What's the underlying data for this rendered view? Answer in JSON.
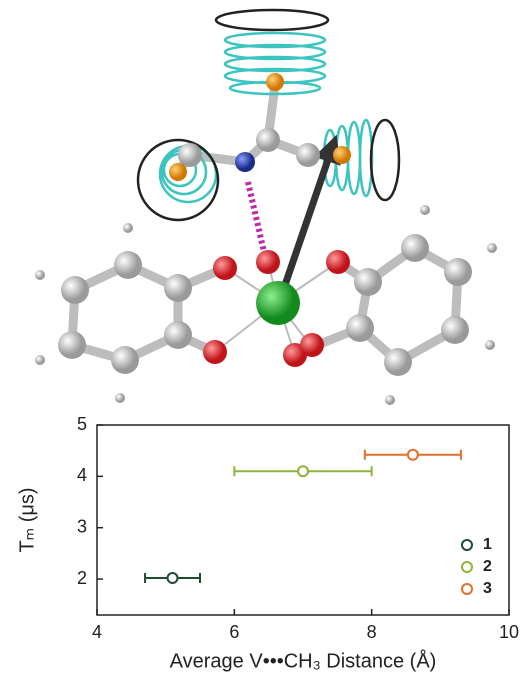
{
  "chart_data": {
    "type": "scatter",
    "xlabel": "Average V•••CH₃ Distance (Å)",
    "ylabel": "Tₘ (μs)",
    "xlim": [
      4,
      10
    ],
    "xticks": [
      4,
      6,
      8,
      10
    ],
    "ylim": [
      1.3,
      5
    ],
    "yticks": [
      2,
      3,
      4,
      5
    ],
    "legend": "lower right",
    "series": [
      {
        "name": "1",
        "color": "#1f4a33",
        "x": [
          5.1
        ],
        "values": [
          2.02
        ],
        "xerr": [
          0.4
        ]
      },
      {
        "name": "2",
        "color": "#8db33a",
        "x": [
          7.0
        ],
        "values": [
          4.1
        ],
        "xerr": [
          1.0
        ]
      },
      {
        "name": "3",
        "color": "#e36f2a",
        "x": [
          8.6
        ],
        "values": [
          4.42
        ],
        "xerr": [
          0.7
        ]
      }
    ]
  }
}
